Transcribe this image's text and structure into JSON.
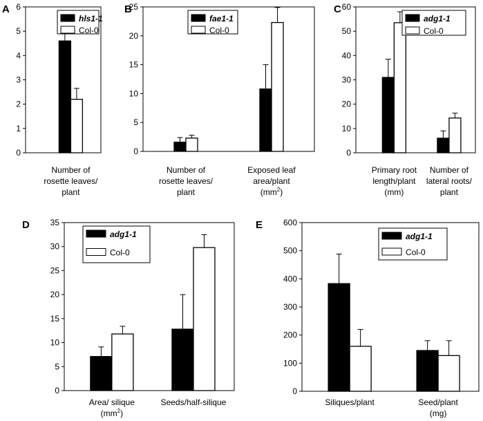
{
  "chart_data": [
    {
      "type": "bar",
      "panel": "A",
      "categories": [
        [
          "Number of",
          "rosette leaves/",
          "plant"
        ]
      ],
      "series": [
        {
          "name": "hls1-1",
          "values": [
            4.6
          ],
          "errors": [
            1.0
          ],
          "fill": "#000000"
        },
        {
          "name": "Col-0",
          "values": [
            2.2
          ],
          "errors": [
            0.45
          ],
          "fill": "#ffffff"
        }
      ],
      "ylim": [
        0,
        6
      ],
      "yticks": [
        0,
        1,
        2,
        3,
        4,
        5,
        6
      ],
      "legend": "top-right"
    },
    {
      "type": "bar",
      "panel": "B",
      "categories": [
        [
          "Number of",
          "rosette leaves/",
          "plant"
        ],
        [
          "Exposed leaf",
          "area/plant",
          "(mm²)"
        ]
      ],
      "series": [
        {
          "name": "fae1-1",
          "values": [
            1.6,
            10.8
          ],
          "errors": [
            0.8,
            4.2
          ],
          "fill": "#000000"
        },
        {
          "name": "Col-0",
          "values": [
            2.3,
            22.3
          ],
          "errors": [
            0.5,
            2.6
          ],
          "fill": "#ffffff"
        }
      ],
      "ylim": [
        0,
        25
      ],
      "yticks": [
        0,
        5,
        10,
        15,
        20,
        25
      ],
      "legend": "top-left"
    },
    {
      "type": "bar",
      "panel": "C",
      "categories": [
        [
          "Primary root",
          "length/plant",
          "(mm)"
        ],
        [
          "Number of",
          "lateral roots/",
          "plant"
        ]
      ],
      "series": [
        {
          "name": "adg1-1",
          "values": [
            31,
            6
          ],
          "errors": [
            7.5,
            3
          ],
          "fill": "#000000"
        },
        {
          "name": "Col-0",
          "values": [
            53.5,
            14.3
          ],
          "errors": [
            4.5,
            2
          ],
          "fill": "#ffffff"
        }
      ],
      "ylim": [
        0,
        60
      ],
      "yticks": [
        0,
        10,
        20,
        30,
        40,
        50,
        60
      ],
      "legend": "top-right"
    },
    {
      "type": "bar",
      "panel": "D",
      "categories": [
        [
          "Area/ silique",
          "(mm²)"
        ],
        [
          "Seeds/half-silique"
        ]
      ],
      "series": [
        {
          "name": "adg1-1",
          "values": [
            7.1,
            12.8
          ],
          "errors": [
            2.0,
            7.2
          ],
          "fill": "#000000"
        },
        {
          "name": "Col-0",
          "values": [
            11.8,
            29.8
          ],
          "errors": [
            1.6,
            2.7
          ],
          "fill": "#ffffff"
        }
      ],
      "ylim": [
        0,
        35
      ],
      "yticks": [
        0,
        5,
        10,
        15,
        20,
        25,
        30,
        35
      ],
      "legend": "top-left"
    },
    {
      "type": "bar",
      "panel": "E",
      "categories": [
        [
          "Siliques/plant"
        ],
        [
          "Seed/plant",
          "(mg)"
        ]
      ],
      "series": [
        {
          "name": "adg1-1",
          "values": [
            383,
            145
          ],
          "errors": [
            105,
            35
          ],
          "fill": "#000000"
        },
        {
          "name": "Col-0",
          "values": [
            160,
            127
          ],
          "errors": [
            60,
            53
          ],
          "fill": "#ffffff"
        }
      ],
      "ylim": [
        0,
        600
      ],
      "yticks": [
        0,
        100,
        200,
        300,
        400,
        500,
        600
      ],
      "legend": "top-right"
    }
  ]
}
